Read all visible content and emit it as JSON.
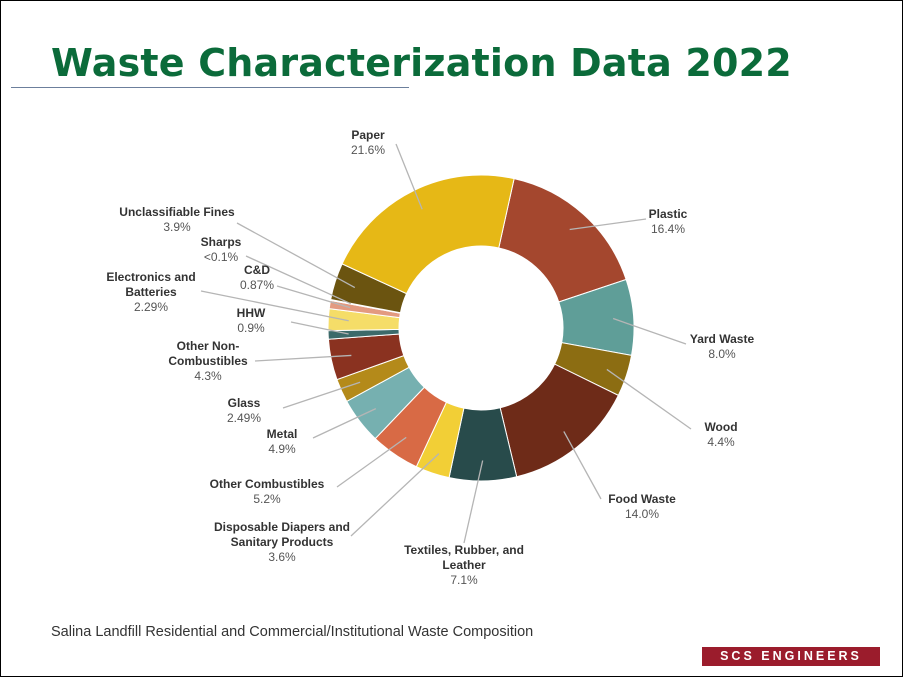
{
  "title": "Waste Characterization Data 2022",
  "caption": "Salina Landfill Residential and Commercial/Institutional Waste Composition",
  "logo_text": "SCS ENGINEERS",
  "colors": {
    "title": "#0b6b3a",
    "logo_bg": "#9b1c2c"
  },
  "chart_data": {
    "type": "pie",
    "donut": true,
    "slices": [
      {
        "name": "Plastic",
        "label": "16.4%",
        "value": 16.4,
        "color": "#a4472e"
      },
      {
        "name": "Yard Waste",
        "label": "8.0%",
        "value": 8.0,
        "color": "#5f9e98"
      },
      {
        "name": "Wood",
        "label": "4.4%",
        "value": 4.4,
        "color": "#8c6d12"
      },
      {
        "name": "Food Waste",
        "label": "14.0%",
        "value": 14.0,
        "color": "#6e2b18"
      },
      {
        "name": "Textiles, Rubber, and Leather",
        "label": "7.1%",
        "value": 7.1,
        "color": "#284b4b"
      },
      {
        "name": "Disposable Diapers and Sanitary Products",
        "label": "3.6%",
        "value": 3.6,
        "color": "#f2cf36"
      },
      {
        "name": "Other Combustibles",
        "label": "5.2%",
        "value": 5.2,
        "color": "#d86a45"
      },
      {
        "name": "Metal",
        "label": "4.9%",
        "value": 4.9,
        "color": "#76b0b0"
      },
      {
        "name": "Glass",
        "label": "2.49%",
        "value": 2.49,
        "color": "#b48a1a"
      },
      {
        "name": "Other Non-Combustibles",
        "label": "4.3%",
        "value": 4.3,
        "color": "#8a3220"
      },
      {
        "name": "HHW",
        "label": "0.9%",
        "value": 0.9,
        "color": "#3c6a6a"
      },
      {
        "name": "Electronics and Batteries",
        "label": "2.29%",
        "value": 2.29,
        "color": "#f5dd68"
      },
      {
        "name": "C&D",
        "label": "0.87%",
        "value": 0.87,
        "color": "#e39a80"
      },
      {
        "name": "Sharps",
        "label": "<0.1%",
        "value": 0.1,
        "color": "#a7cbc8"
      },
      {
        "name": "Unclassifiable Fines",
        "label": "3.9%",
        "value": 3.9,
        "color": "#6b5410"
      },
      {
        "name": "Paper",
        "label": "21.6%",
        "value": 21.6,
        "color": "#e6b816"
      }
    ]
  }
}
